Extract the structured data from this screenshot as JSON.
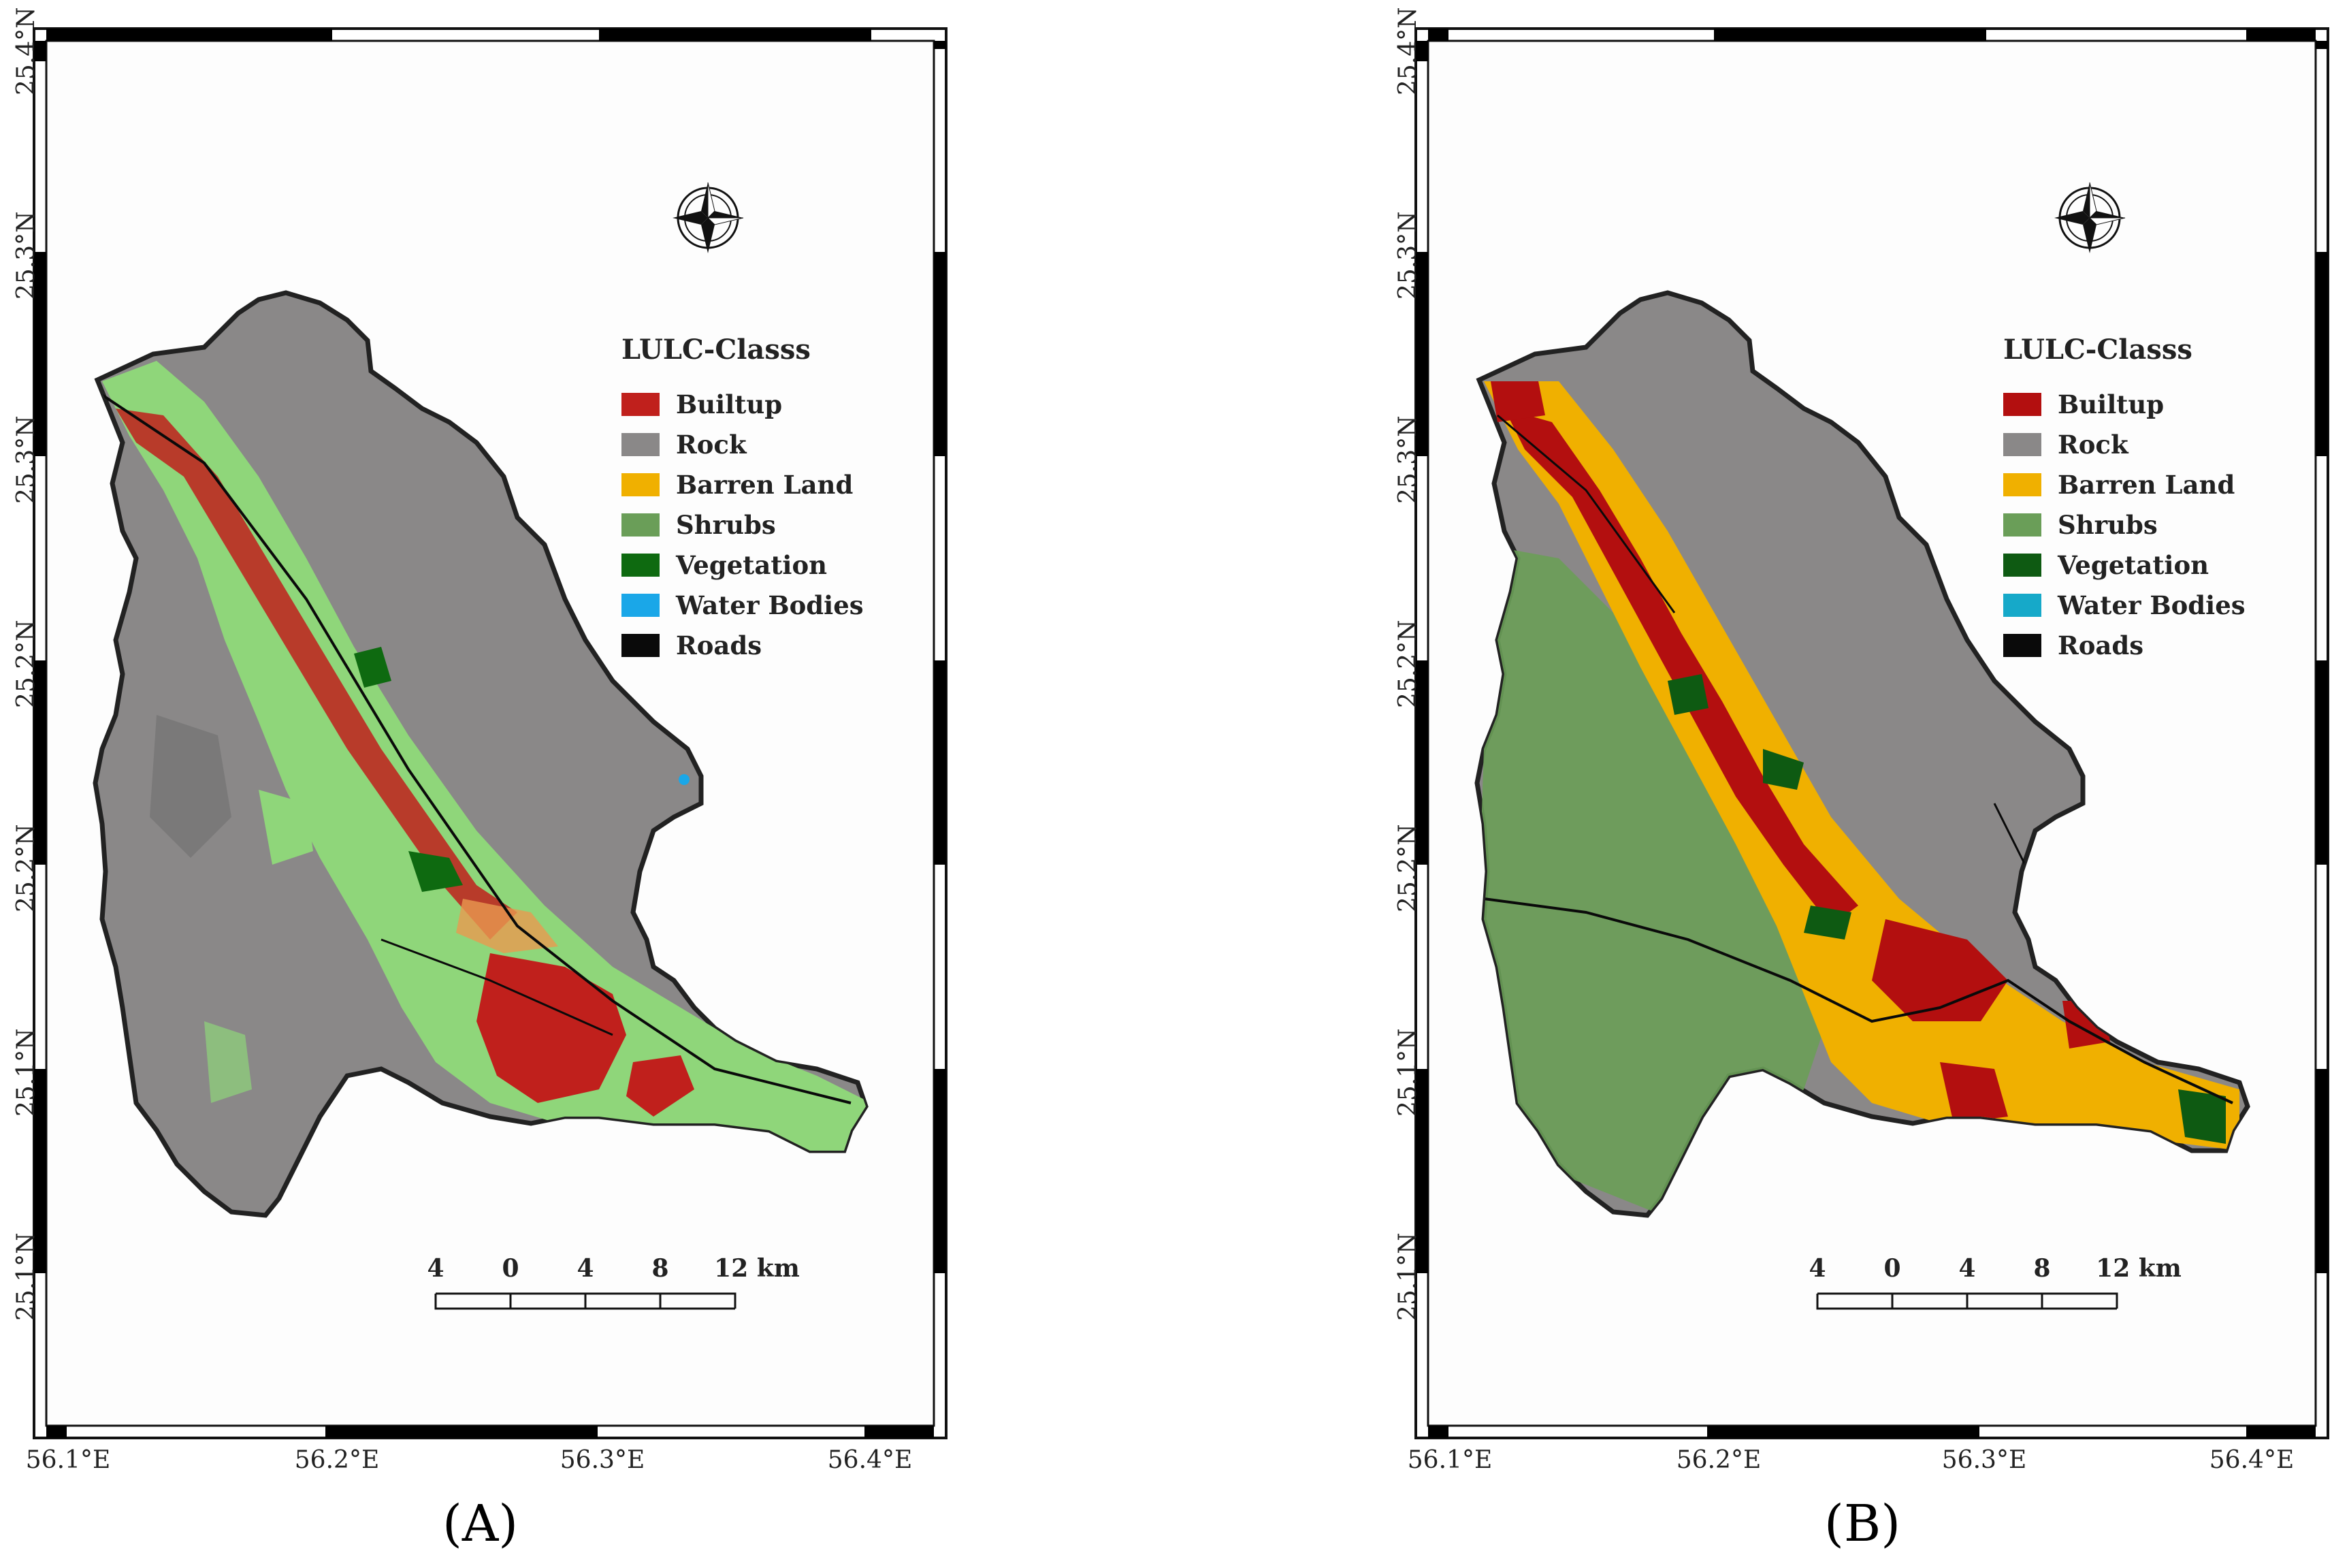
{
  "panels": [
    {
      "id": "A",
      "label": "(A)",
      "legend_title": "LULC-Classs",
      "legend": [
        {
          "name": "Builtup",
          "color": "#c0201c"
        },
        {
          "name": "Rock",
          "color": "#8a8888"
        },
        {
          "name": "Barren Land",
          "color": "#f0b000"
        },
        {
          "name": "Shrubs",
          "color": "#6a9e58"
        },
        {
          "name": "Vegetation",
          "color": "#0e6a10"
        },
        {
          "name": "Water Bodies",
          "color": "#1aa7e8"
        },
        {
          "name": "Roads",
          "color": "#0a0a0a"
        }
      ],
      "shrub_color_on_map": "#8fd67a",
      "lat_labels": [
        "25.4°N",
        "25.3°N",
        "25.3°N",
        "25.2°N",
        "25.2°N",
        "25.1°N",
        "25.1°N"
      ],
      "lon_labels": [
        "56.1°E",
        "56.2°E",
        "56.3°E",
        "56.4°E"
      ],
      "scale_labels": [
        "4",
        "0",
        "4",
        "8",
        "12 km"
      ]
    },
    {
      "id": "B",
      "label": "(B)",
      "legend_title": "LULC-Classs",
      "legend": [
        {
          "name": "Builtup",
          "color": "#b30f0f"
        },
        {
          "name": "Rock",
          "color": "#8a8888"
        },
        {
          "name": "Barren Land",
          "color": "#f0b000"
        },
        {
          "name": "Shrubs",
          "color": "#6a9e58"
        },
        {
          "name": "Vegetation",
          "color": "#0e5a12"
        },
        {
          "name": "Water Bodies",
          "color": "#16a9c9"
        },
        {
          "name": "Roads",
          "color": "#0a0a0a"
        }
      ],
      "shrub_color_on_map": "#6a9e58",
      "lat_labels": [
        "25.4°N",
        "25.3°N",
        "25.3°N",
        "25.2°N",
        "25.2°N",
        "25.1°N",
        "25.1°N"
      ],
      "lon_labels": [
        "56.1°E",
        "56.2°E",
        "56.3°E",
        "56.4°E"
      ],
      "scale_labels": [
        "4",
        "0",
        "4",
        "8",
        "12 km"
      ]
    }
  ]
}
